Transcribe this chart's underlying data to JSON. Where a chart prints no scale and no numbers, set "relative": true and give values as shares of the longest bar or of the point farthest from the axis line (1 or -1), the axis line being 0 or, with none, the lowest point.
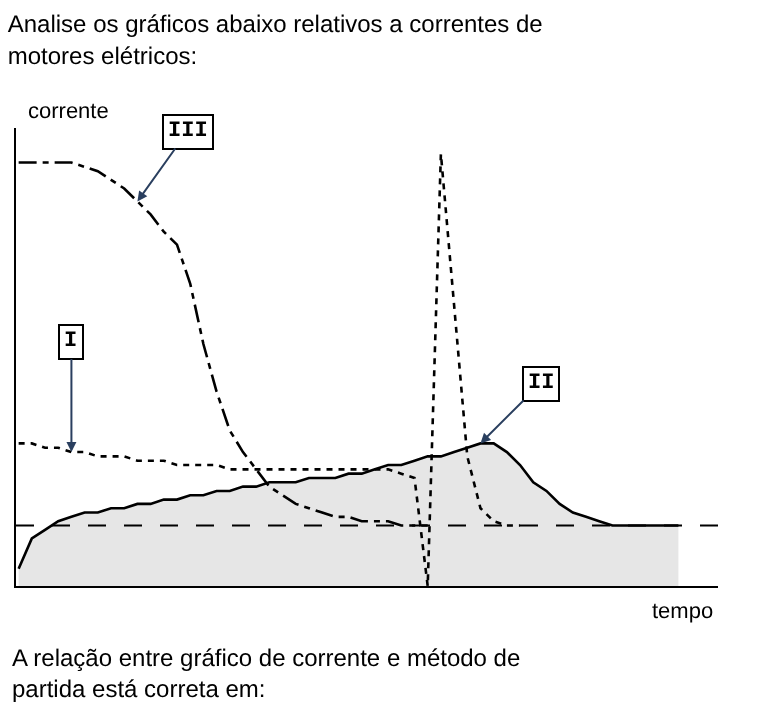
{
  "chart_data": {
    "type": "line",
    "relative": true,
    "title": "Analise os gráficos abaixo relativos a correntes de motores elétricos:",
    "xlabel": "tempo",
    "ylabel": "corrente",
    "legend": false,
    "marker": "none",
    "categories": [
      null,
      null,
      null,
      null,
      null,
      null,
      null,
      null,
      null,
      null,
      null,
      null,
      null,
      null,
      null,
      null,
      null,
      null,
      null,
      null,
      null,
      null,
      null,
      null,
      null,
      null,
      null,
      null,
      null,
      null,
      null,
      null,
      null,
      null,
      null,
      null,
      null,
      null,
      null,
      null,
      null,
      null,
      null,
      null,
      null,
      null,
      null,
      null,
      null,
      null,
      null
    ],
    "series": [
      {
        "name": "III",
        "color": "#000000",
        "line_style": "dashdot",
        "values": [
          0.98,
          0.98,
          0.98,
          0.98,
          0.98,
          0.97,
          0.96,
          0.94,
          0.92,
          0.89,
          0.86,
          0.82,
          0.79,
          0.7,
          0.56,
          0.45,
          0.36,
          0.31,
          0.27,
          0.23,
          0.21,
          0.19,
          0.18,
          0.17,
          0.16,
          0.16,
          0.15,
          0.15,
          0.15,
          0.14,
          0.14,
          0.14,
          null,
          null,
          null,
          null,
          null,
          null,
          null,
          null,
          null,
          null,
          null,
          null,
          null,
          null,
          null,
          null,
          null,
          null,
          null
        ]
      },
      {
        "name": "II",
        "type": "area",
        "color": "#000000",
        "line_style": "solid",
        "values": [
          0.04,
          0.11,
          0.13,
          0.15,
          0.16,
          0.17,
          0.17,
          0.18,
          0.18,
          0.19,
          0.19,
          0.2,
          0.2,
          0.21,
          0.21,
          0.22,
          0.22,
          0.23,
          0.23,
          0.24,
          0.24,
          0.24,
          0.25,
          0.25,
          0.25,
          0.26,
          0.26,
          0.27,
          0.28,
          0.28,
          0.29,
          0.3,
          0.3,
          0.31,
          0.32,
          0.33,
          0.33,
          0.31,
          0.28,
          0.24,
          0.22,
          0.19,
          0.17,
          0.16,
          0.15,
          0.14,
          0.14,
          0.14,
          0.14,
          0.14,
          0.14
        ]
      },
      {
        "name": "I",
        "color": "#000000",
        "line_style": "dotted",
        "values": [
          0.33,
          0.33,
          0.32,
          0.32,
          0.31,
          0.31,
          0.3,
          0.3,
          0.3,
          0.29,
          0.29,
          0.29,
          0.28,
          0.28,
          0.28,
          0.28,
          0.27,
          0.27,
          0.27,
          0.27,
          0.27,
          0.27,
          0.27,
          0.27,
          0.27,
          0.27,
          0.27,
          0.27,
          0.27,
          0.26,
          0.25,
          0,
          1,
          0.65,
          0.3,
          0.18,
          0.15,
          0.14,
          0.14,
          null,
          null,
          null,
          null,
          null,
          null,
          null,
          null,
          null,
          null,
          null,
          null
        ]
      }
    ],
    "ref_lines": [
      {
        "axis": "y",
        "value": 0.14,
        "line_style": "dashed",
        "color": "#000000"
      }
    ],
    "annotations": [
      "A relação entre gráfico de corrente e método de partida está correta em:"
    ]
  }
}
